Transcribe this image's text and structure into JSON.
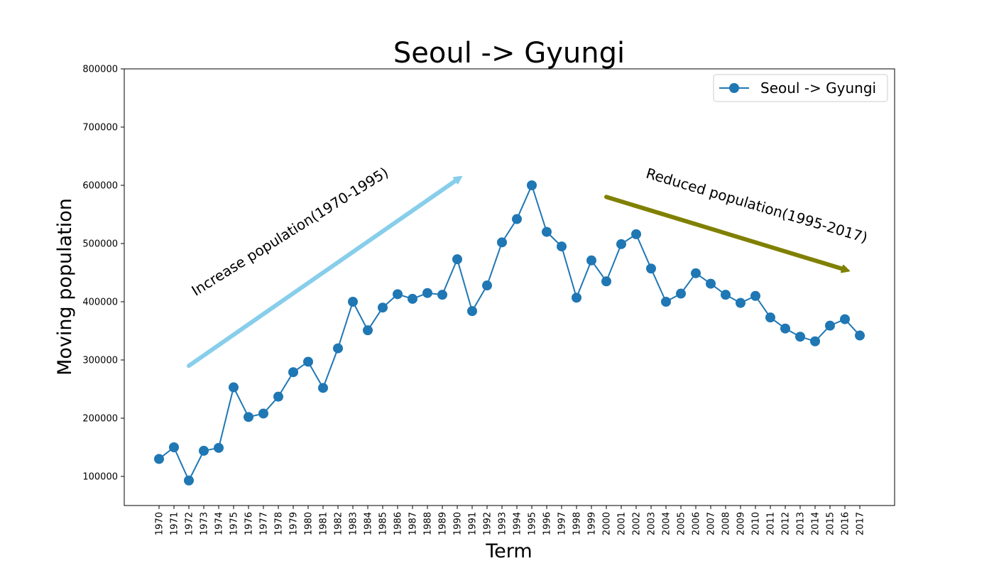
{
  "chart_data": {
    "type": "line",
    "title": "Seoul -> Gyungi",
    "xlabel": "Term",
    "ylabel": "Moving population",
    "ylim": [
      50000,
      800000
    ],
    "yticks": [
      100000,
      200000,
      300000,
      400000,
      500000,
      600000,
      700000,
      800000
    ],
    "grid": false,
    "legend_position": "top-right",
    "categories": [
      "1970",
      "1971",
      "1972",
      "1973",
      "1974",
      "1975",
      "1976",
      "1977",
      "1978",
      "1979",
      "1980",
      "1981",
      "1982",
      "1983",
      "1984",
      "1985",
      "1986",
      "1987",
      "1988",
      "1989",
      "1990",
      "1991",
      "1992",
      "1993",
      "1994",
      "1995",
      "1996",
      "1997",
      "1998",
      "1999",
      "2000",
      "2001",
      "2002",
      "2003",
      "2004",
      "2005",
      "2006",
      "2007",
      "2008",
      "2009",
      "2010",
      "2011",
      "2012",
      "2013",
      "2014",
      "2015",
      "2016",
      "2017"
    ],
    "series": [
      {
        "name": "Seoul -> Gyungi",
        "color": "#1f77b4",
        "marker": "circle",
        "values": [
          130000,
          150000,
          93000,
          144000,
          149000,
          253000,
          202000,
          208000,
          237000,
          279000,
          297000,
          252000,
          320000,
          400000,
          351000,
          390000,
          413000,
          405000,
          415000,
          412000,
          473000,
          384000,
          428000,
          502000,
          542000,
          600000,
          520000,
          495000,
          407000,
          471000,
          435000,
          499000,
          516000,
          457000,
          400000,
          414000,
          449000,
          431000,
          412000,
          398000,
          410000,
          373000,
          354000,
          340000,
          332000,
          359000,
          370000,
          342000
        ]
      }
    ],
    "annotations": [
      {
        "text": "Increase population(1970-1995)",
        "arrow_color": "#87ceeb",
        "arrow_from": {
          "x": "1972",
          "y": 290000
        },
        "arrow_to": {
          "x": "1990",
          "y": 615000
        }
      },
      {
        "text": "Reduced population(1995-2017)",
        "arrow_color": "#808000",
        "arrow_from": {
          "x": "2000",
          "y": 580000
        },
        "arrow_to": {
          "x": "2016",
          "y": 453000
        }
      }
    ]
  }
}
